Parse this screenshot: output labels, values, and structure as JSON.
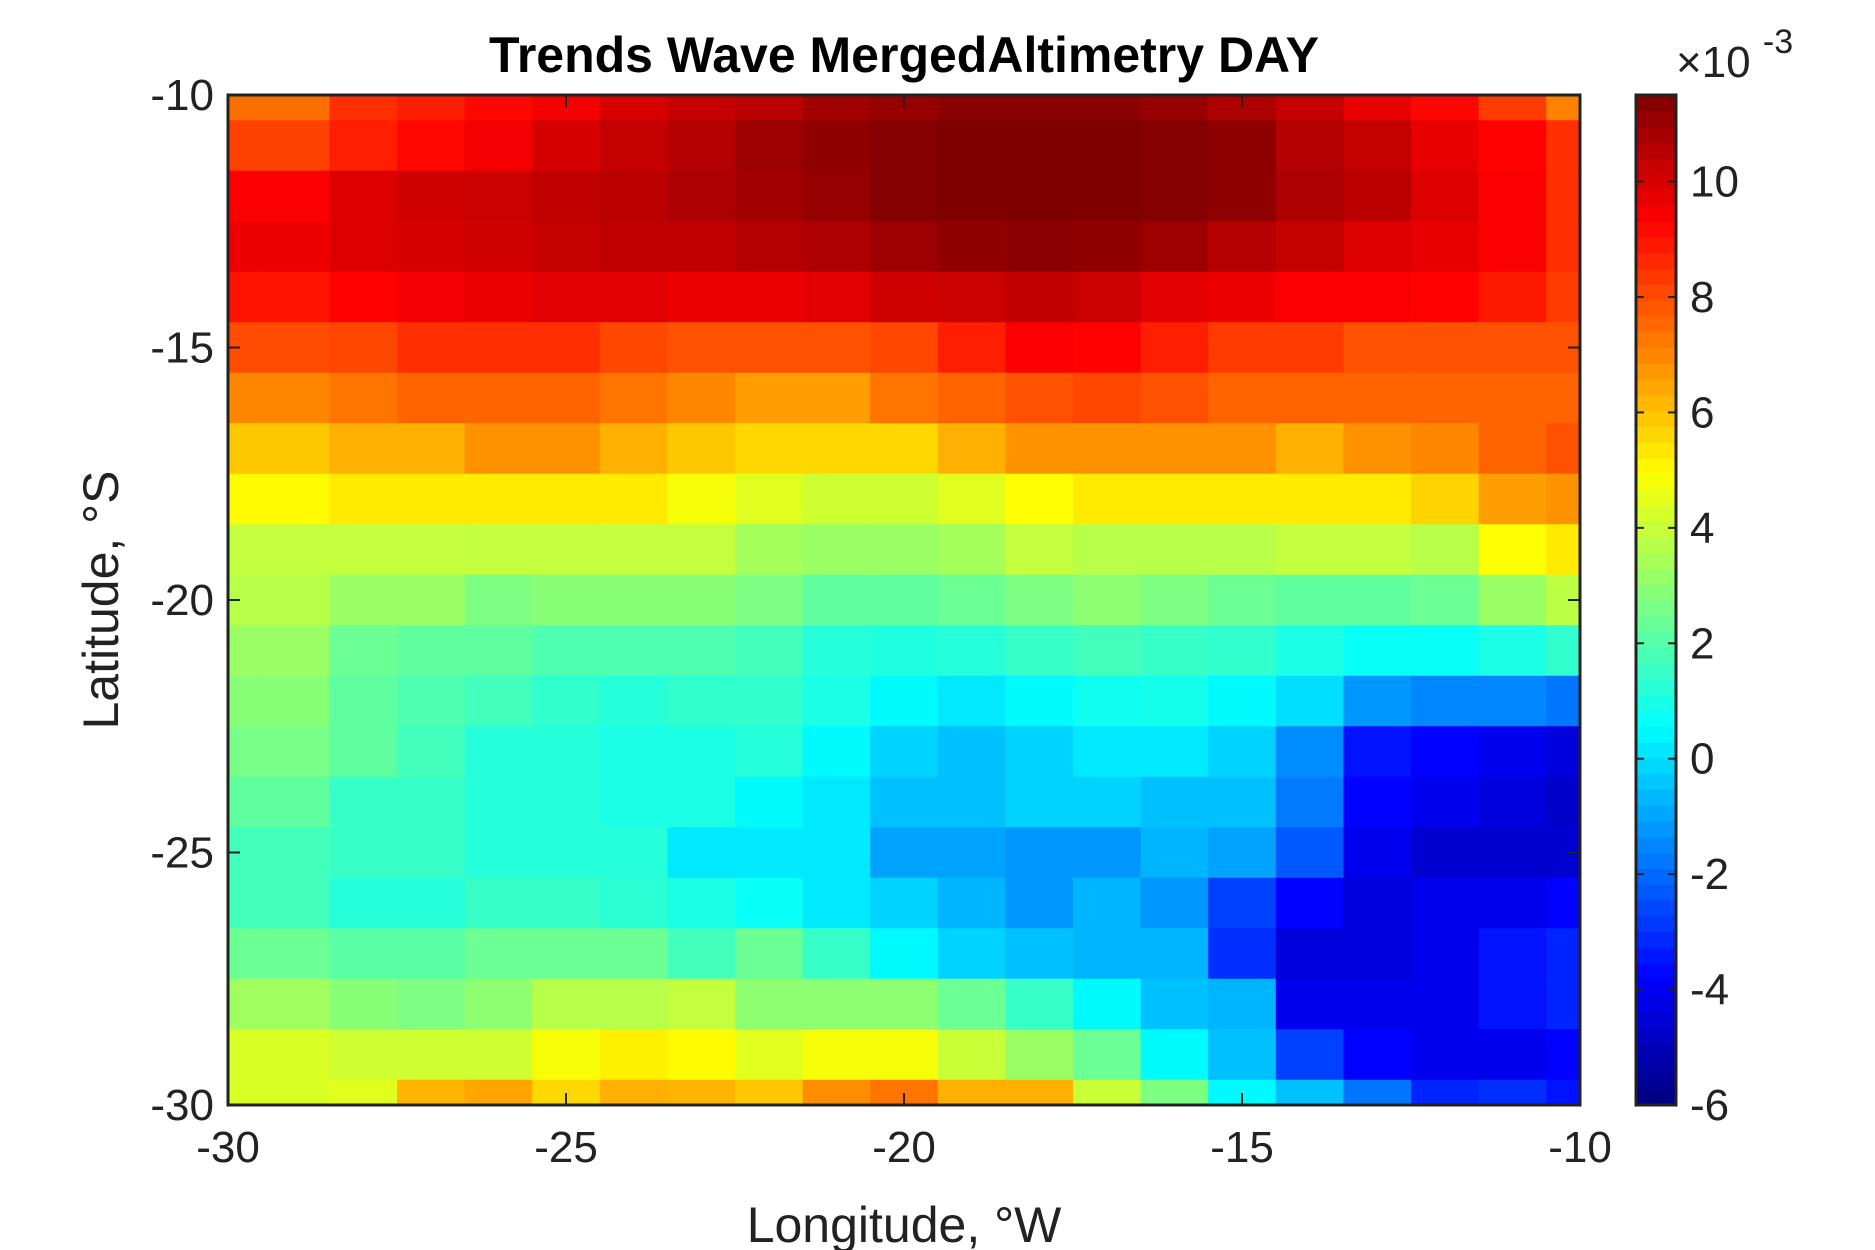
{
  "chart_data": {
    "type": "heatmap",
    "title": "Trends Wave MergedAltimetry DAY",
    "xlabel": "Longitude, °W",
    "ylabel": "Latitude, °S",
    "xlim": [
      -30,
      -10
    ],
    "ylim": [
      -30,
      -10
    ],
    "x_ticks": [
      "-30",
      "-25",
      "-20",
      "-15",
      "-10"
    ],
    "x_tick_values": [
      -30,
      -25,
      -20,
      -15,
      -10
    ],
    "y_ticks": [
      "-10",
      "-15",
      "-20",
      "-25",
      "-30"
    ],
    "y_tick_values": [
      -10,
      -15,
      -20,
      -25,
      -30
    ],
    "colorbar": {
      "colormap": "jet",
      "range": [
        -6,
        11.5
      ],
      "multiplier": "×10",
      "exponent": "-3",
      "ticks": [
        "10",
        "8",
        "6",
        "4",
        "2",
        "0",
        "-2",
        "-4",
        "-6"
      ],
      "tick_values": [
        10,
        8,
        6,
        4,
        2,
        0,
        -2,
        -4,
        -6
      ]
    },
    "grid": false,
    "x_centers": [
      -30,
      -29,
      -28,
      -27,
      -26,
      -25,
      -24,
      -23,
      -22,
      -21,
      -20,
      -19,
      -18,
      -17,
      -16,
      -15,
      -14,
      -13,
      -12,
      -11,
      -10
    ],
    "y_centers": [
      -10,
      -11,
      -12,
      -13,
      -14,
      -15,
      -16,
      -17,
      -18,
      -19,
      -20,
      -21,
      -22,
      -23,
      -24,
      -25,
      -26,
      -27,
      -28,
      -29,
      -30
    ],
    "values": [
      [
        7.4,
        7.4,
        8.5,
        8.8,
        9.2,
        9.5,
        10.0,
        10.3,
        10.5,
        10.9,
        11.1,
        11.3,
        11.3,
        11.3,
        11.1,
        10.7,
        10.3,
        9.7,
        9.2,
        8.3,
        7.1
      ],
      [
        8.2,
        8.2,
        8.8,
        9.2,
        9.5,
        10.0,
        10.3,
        10.6,
        11.0,
        11.2,
        11.4,
        11.5,
        11.5,
        11.5,
        11.4,
        11.2,
        10.6,
        10.3,
        9.7,
        9.3,
        8.5
      ],
      [
        9.4,
        9.4,
        9.9,
        10.1,
        10.2,
        10.4,
        10.5,
        10.7,
        10.9,
        11.1,
        11.4,
        11.5,
        11.5,
        11.5,
        11.4,
        11.2,
        10.7,
        10.5,
        9.9,
        9.4,
        8.5
      ],
      [
        9.6,
        9.6,
        9.9,
        10.0,
        10.1,
        10.3,
        10.4,
        10.4,
        10.6,
        10.7,
        11.0,
        11.2,
        11.3,
        11.2,
        11.0,
        10.6,
        10.3,
        9.9,
        9.7,
        9.4,
        8.5
      ],
      [
        9.0,
        9.0,
        9.3,
        9.5,
        9.6,
        9.8,
        9.8,
        9.6,
        9.6,
        9.8,
        10.1,
        10.2,
        10.4,
        10.2,
        9.8,
        9.6,
        9.4,
        9.4,
        9.3,
        8.9,
        8.3
      ],
      [
        8.0,
        8.0,
        8.1,
        8.5,
        8.5,
        8.5,
        8.1,
        7.9,
        7.9,
        7.9,
        8.1,
        8.8,
        9.4,
        9.3,
        8.8,
        8.3,
        8.3,
        7.9,
        7.9,
        7.9,
        7.9
      ],
      [
        7.0,
        7.0,
        7.3,
        7.6,
        7.6,
        7.6,
        7.3,
        7.0,
        6.6,
        6.6,
        7.3,
        7.6,
        7.9,
        8.1,
        7.9,
        7.6,
        7.6,
        7.6,
        7.6,
        7.6,
        7.6
      ],
      [
        5.9,
        5.9,
        6.3,
        6.3,
        6.8,
        6.8,
        6.3,
        5.9,
        5.6,
        5.6,
        5.6,
        6.3,
        6.8,
        6.8,
        6.8,
        6.8,
        6.3,
        6.8,
        7.0,
        7.6,
        7.9
      ],
      [
        5.0,
        5.0,
        5.3,
        5.3,
        5.3,
        5.3,
        5.3,
        4.8,
        4.4,
        4.1,
        4.1,
        4.4,
        4.9,
        5.3,
        5.3,
        5.3,
        5.3,
        5.3,
        5.7,
        6.6,
        6.8
      ],
      [
        3.9,
        3.9,
        3.9,
        3.9,
        3.9,
        3.9,
        3.9,
        3.9,
        3.4,
        3.2,
        3.2,
        3.4,
        3.9,
        3.7,
        3.7,
        3.7,
        3.9,
        3.9,
        3.7,
        4.9,
        5.3
      ],
      [
        3.7,
        3.7,
        3.2,
        3.2,
        2.7,
        2.9,
        2.9,
        2.9,
        2.7,
        2.2,
        2.2,
        2.4,
        2.7,
        3.0,
        2.7,
        2.4,
        2.2,
        2.2,
        2.4,
        3.2,
        3.8
      ],
      [
        3.2,
        3.2,
        2.4,
        2.2,
        2.2,
        1.9,
        1.9,
        1.9,
        1.7,
        1.2,
        1.1,
        1.2,
        1.5,
        1.7,
        1.5,
        1.4,
        1.0,
        0.7,
        0.7,
        1.0,
        1.4
      ],
      [
        2.9,
        2.9,
        2.2,
        1.9,
        1.7,
        1.4,
        1.2,
        1.4,
        1.4,
        1.0,
        0.5,
        0.2,
        0.5,
        0.8,
        0.9,
        0.5,
        0.0,
        -1.2,
        -1.5,
        -1.5,
        -1.8
      ],
      [
        2.6,
        2.6,
        2.2,
        1.7,
        1.2,
        1.2,
        1.0,
        1.0,
        1.2,
        0.5,
        -0.2,
        -0.5,
        -0.2,
        0.2,
        0.2,
        -0.2,
        -1.4,
        -3.5,
        -3.8,
        -4.1,
        -4.4
      ],
      [
        2.2,
        2.2,
        1.5,
        1.5,
        1.2,
        1.2,
        1.0,
        1.0,
        0.5,
        0.2,
        -0.5,
        -0.5,
        -0.2,
        -0.2,
        -0.5,
        -0.5,
        -1.7,
        -3.8,
        -4.1,
        -4.4,
        -4.7
      ],
      [
        1.7,
        1.7,
        1.5,
        1.5,
        1.2,
        1.2,
        1.2,
        0.2,
        0.2,
        0.2,
        -1.0,
        -1.0,
        -1.2,
        -1.2,
        -0.7,
        -1.0,
        -2.3,
        -4.1,
        -4.6,
        -4.6,
        -4.6
      ],
      [
        1.7,
        1.7,
        1.2,
        1.2,
        1.5,
        1.5,
        1.3,
        1.0,
        0.7,
        0.2,
        -0.2,
        -0.7,
        -1.2,
        -0.7,
        -1.2,
        -2.7,
        -3.8,
        -4.4,
        -4.1,
        -4.1,
        -3.8
      ],
      [
        2.4,
        2.4,
        2.1,
        2.1,
        2.4,
        2.4,
        2.4,
        1.7,
        2.4,
        1.5,
        0.5,
        -0.2,
        -0.5,
        -0.7,
        -0.7,
        -3.0,
        -4.4,
        -4.4,
        -4.1,
        -3.5,
        -3.2
      ],
      [
        3.3,
        3.3,
        2.9,
        2.7,
        3.0,
        3.7,
        3.7,
        3.9,
        3.0,
        3.0,
        3.0,
        2.4,
        1.5,
        0.5,
        -0.5,
        -0.7,
        -4.1,
        -4.1,
        -4.1,
        -3.5,
        -3.2
      ],
      [
        4.3,
        4.3,
        4.1,
        4.1,
        4.1,
        4.8,
        5.2,
        5.0,
        4.4,
        4.8,
        4.8,
        4.0,
        3.2,
        2.4,
        0.5,
        -0.5,
        -2.7,
        -3.8,
        -4.1,
        -4.1,
        -3.8
      ],
      [
        4.3,
        4.3,
        4.4,
        6.2,
        6.5,
        5.6,
        6.3,
        6.2,
        5.9,
        6.9,
        7.3,
        6.3,
        6.3,
        4.0,
        2.7,
        0.5,
        -0.5,
        -1.8,
        -3.2,
        -3.0,
        -3.5
      ]
    ]
  }
}
